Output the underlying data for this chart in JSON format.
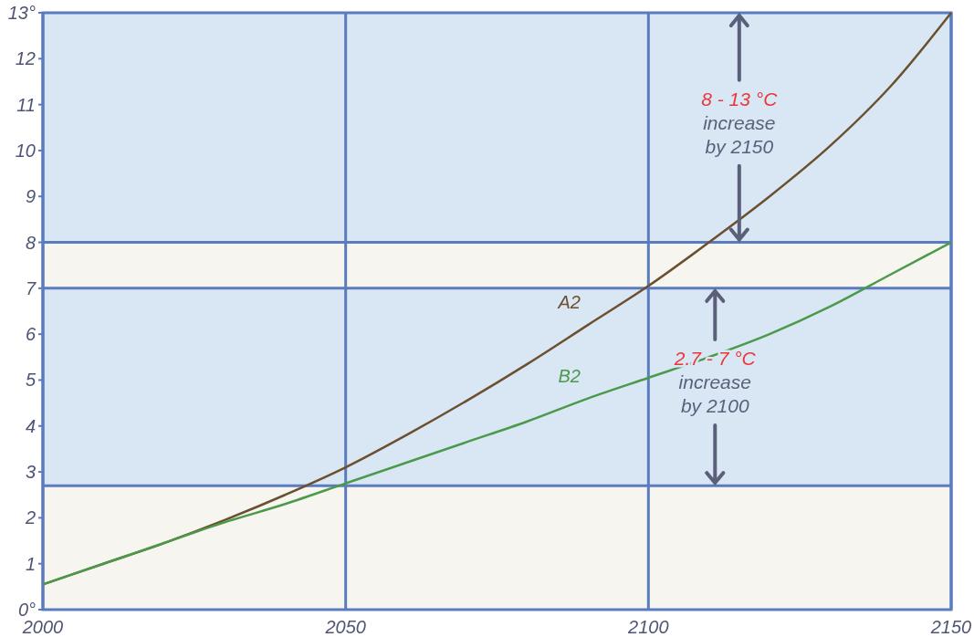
{
  "chart_data": {
    "type": "line",
    "x": [
      2000,
      2010,
      2020,
      2030,
      2040,
      2050,
      2060,
      2070,
      2080,
      2090,
      2100,
      2110,
      2120,
      2130,
      2140,
      2150
    ],
    "series": [
      {
        "name": "A2",
        "color": "#6b5030",
        "values": [
          0.55,
          1.0,
          1.45,
          1.95,
          2.5,
          3.1,
          3.8,
          4.55,
          5.35,
          6.2,
          7.05,
          8.0,
          9.0,
          10.1,
          11.4,
          13.0
        ]
      },
      {
        "name": "B2",
        "color": "#4a9a4a",
        "values": [
          0.55,
          1.0,
          1.45,
          1.9,
          2.3,
          2.75,
          3.2,
          3.65,
          4.1,
          4.6,
          5.05,
          5.5,
          6.0,
          6.6,
          7.3,
          8.0
        ]
      }
    ],
    "xlim": [
      2000,
      2150
    ],
    "xticks": [
      2000,
      2050,
      2100,
      2150
    ],
    "ylim": [
      0,
      13
    ],
    "yticks": [
      {
        "value": 0,
        "label": "0°"
      },
      1,
      2,
      3,
      4,
      5,
      6,
      7,
      8,
      9,
      10,
      11,
      12,
      {
        "value": 13,
        "label": "13°"
      }
    ],
    "grid": "x",
    "marker": "none",
    "line_style": "solid",
    "bands": [
      {
        "axis": "y",
        "from": 8,
        "to": 13,
        "label": "8 - 13 °C",
        "color": "#d9e6f4"
      },
      {
        "axis": "y",
        "from": 2.7,
        "to": 7,
        "label": "2.7 - 7 °C",
        "color": "#d9e6f4"
      }
    ],
    "ref_lines": [
      {
        "axis": "y",
        "value": 8,
        "color": "#5b7bbf"
      },
      {
        "axis": "y",
        "value": 7,
        "color": "#5b7bbf"
      },
      {
        "axis": "y",
        "value": 2.7,
        "color": "#5b7bbf"
      }
    ],
    "annotations": [
      {
        "text": "increase by 2150",
        "x": 2115,
        "y": 8
      },
      {
        "text": "increase by 2100",
        "x": 2111,
        "y": 2.7
      }
    ]
  }
}
